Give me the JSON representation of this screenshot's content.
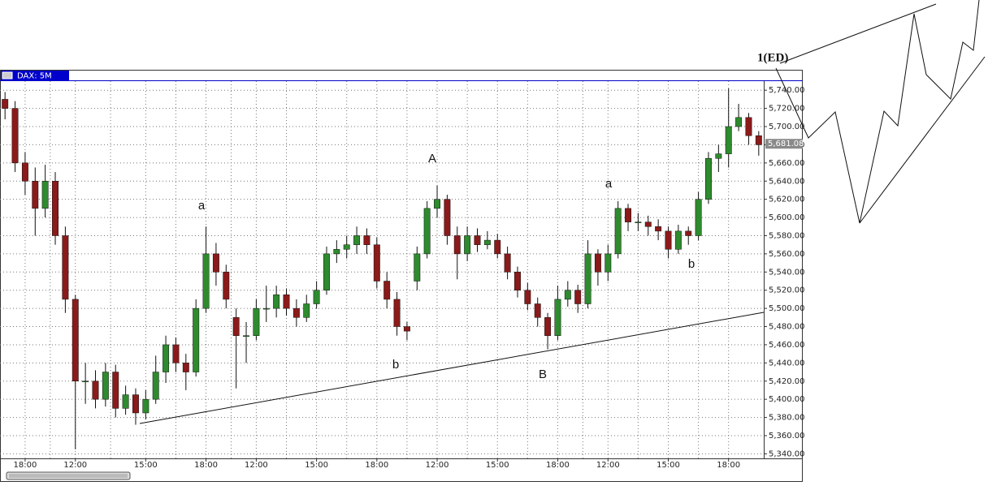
{
  "chart_data": {
    "type": "candlestick",
    "title": "DAX: 5M",
    "categories": [
      null,
      null,
      "18:00",
      null,
      null,
      null,
      null,
      "12:00",
      null,
      null,
      null,
      null,
      null,
      null,
      "15:00",
      null,
      null,
      null,
      null,
      null,
      "18:00",
      null,
      null,
      null,
      null,
      "12:00",
      null,
      null,
      null,
      null,
      null,
      "15:00",
      null,
      null,
      null,
      null,
      null,
      "18:00",
      null,
      null,
      null,
      null,
      null,
      "12:00",
      null,
      null,
      null,
      null,
      null,
      "15:00",
      null,
      null,
      null,
      null,
      null,
      "18:00",
      null,
      null,
      null,
      null,
      "12:00",
      null,
      null,
      null,
      null,
      null,
      "15:00",
      null,
      null,
      null,
      null,
      null,
      "18:00",
      null,
      null,
      null
    ],
    "open": [
      5730,
      5720,
      5660,
      5640,
      5610,
      5640,
      5580,
      5510,
      5420,
      5420,
      5400,
      5430,
      5390,
      5405,
      5385,
      5400,
      5430,
      5460,
      5440,
      5430,
      5500,
      5560,
      5540,
      5490,
      5470,
      5470,
      5500,
      5500,
      5515,
      5500,
      5490,
      5505,
      5520,
      5560,
      5565,
      5570,
      5580,
      5570,
      5530,
      5510,
      5480,
      5530,
      5560,
      5610,
      5620,
      5580,
      5560,
      5580,
      5570,
      5575,
      5560,
      5540,
      5520,
      5505,
      5490,
      5470,
      5510,
      5520,
      5505,
      5560,
      5540,
      5560,
      5610,
      5595,
      5595,
      5590,
      5585,
      5565,
      5585,
      5580,
      5620,
      5665,
      5670,
      5700,
      5710,
      5690
    ],
    "high": [
      5738,
      5728,
      5672,
      5655,
      5658,
      5650,
      5590,
      5515,
      5440,
      5432,
      5440,
      5438,
      5415,
      5412,
      5410,
      5448,
      5470,
      5468,
      5450,
      5510,
      5590,
      5572,
      5548,
      5500,
      5485,
      5510,
      5525,
      5525,
      5522,
      5510,
      5515,
      5530,
      5568,
      5575,
      5580,
      5590,
      5588,
      5578,
      5540,
      5518,
      5485,
      5568,
      5618,
      5635,
      5625,
      5590,
      5590,
      5588,
      5585,
      5582,
      5568,
      5546,
      5528,
      5512,
      5495,
      5525,
      5530,
      5526,
      5575,
      5565,
      5570,
      5618,
      5615,
      5605,
      5602,
      5598,
      5590,
      5592,
      5590,
      5628,
      5672,
      5680,
      5742,
      5725,
      5715,
      5695
    ],
    "low": [
      5708,
      5650,
      5625,
      5580,
      5600,
      5570,
      5495,
      5345,
      5395,
      5390,
      5392,
      5380,
      5383,
      5372,
      5378,
      5395,
      5418,
      5430,
      5410,
      5425,
      5495,
      5525,
      5500,
      5412,
      5440,
      5465,
      5485,
      5490,
      5492,
      5480,
      5485,
      5500,
      5515,
      5550,
      5555,
      5560,
      5560,
      5522,
      5500,
      5470,
      5465,
      5520,
      5555,
      5600,
      5570,
      5532,
      5552,
      5562,
      5565,
      5555,
      5532,
      5512,
      5498,
      5480,
      5455,
      5465,
      5502,
      5495,
      5500,
      5525,
      5530,
      5555,
      5585,
      5585,
      5580,
      5575,
      5555,
      5560,
      5570,
      5575,
      5615,
      5650,
      5655,
      5695,
      5680,
      5668
    ],
    "close": [
      5720,
      5660,
      5640,
      5610,
      5640,
      5580,
      5510,
      5420,
      5420,
      5400,
      5430,
      5390,
      5405,
      5385,
      5400,
      5430,
      5460,
      5440,
      5430,
      5500,
      5560,
      5540,
      5510,
      5470,
      5470,
      5500,
      5500,
      5515,
      5500,
      5490,
      5505,
      5520,
      5560,
      5565,
      5570,
      5580,
      5570,
      5530,
      5510,
      5480,
      5475,
      5560,
      5610,
      5620,
      5580,
      5560,
      5580,
      5570,
      5575,
      5560,
      5540,
      5520,
      5505,
      5490,
      5470,
      5510,
      5520,
      5505,
      5560,
      5540,
      5560,
      5610,
      5595,
      5595,
      5590,
      5585,
      5565,
      5585,
      5580,
      5620,
      5665,
      5670,
      5700,
      5710,
      5690,
      5680
    ],
    "up_color": "#2e8b2e",
    "down_color": "#8b1a1a",
    "ylim": [
      5335,
      5750
    ],
    "yticks": [
      {
        "value": 5340,
        "label": "5,340.00"
      },
      {
        "value": 5360,
        "label": "5,360.00"
      },
      {
        "value": 5380,
        "label": "5,380.00"
      },
      {
        "value": 5400,
        "label": "5,400.00"
      },
      {
        "value": 5420,
        "label": "5,420.00"
      },
      {
        "value": 5440,
        "label": "5,440.00"
      },
      {
        "value": 5460,
        "label": "5,460.00"
      },
      {
        "value": 5480,
        "label": "5,480.00"
      },
      {
        "value": 5500,
        "label": "5,500.00"
      },
      {
        "value": 5520,
        "label": "5,520.00"
      },
      {
        "value": 5540,
        "label": "5,540.00"
      },
      {
        "value": 5560,
        "label": "5,560.00"
      },
      {
        "value": 5580,
        "label": "5,580.00"
      },
      {
        "value": 5600,
        "label": "5,600.00"
      },
      {
        "value": 5620,
        "label": "5,620.00"
      },
      {
        "value": 5640,
        "label": "5,640.00"
      },
      {
        "value": 5660,
        "label": "5,660.00"
      },
      {
        "value": 5680,
        "label": "5,680.00"
      },
      {
        "value": 5700,
        "label": "5,700.00"
      },
      {
        "value": 5720,
        "label": "5,720.00"
      },
      {
        "value": 5740,
        "label": "5,740.00"
      }
    ],
    "grid": true,
    "last_price": {
      "value": 5681.08,
      "label": "5,681.08"
    },
    "annotations": [
      "a",
      "A",
      "b",
      "B",
      "a",
      "b"
    ],
    "wave_label": "1(ED)"
  }
}
